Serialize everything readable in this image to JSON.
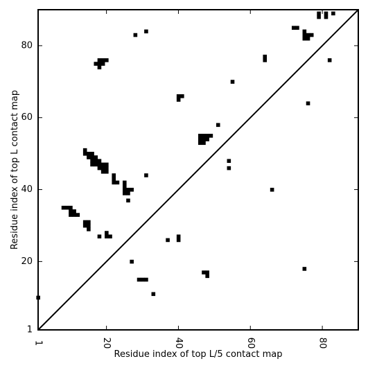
{
  "chart_data": {
    "type": "heatmap",
    "xlabel": "Residue index of top L/5 contact map",
    "ylabel": "Residue index of top L contact map",
    "xlim": [
      1,
      90
    ],
    "ylim": [
      1,
      90
    ],
    "x_ticks": [
      {
        "value": 1,
        "label": "1"
      },
      {
        "value": 20,
        "label": "20"
      },
      {
        "value": 40,
        "label": "40"
      },
      {
        "value": 60,
        "label": "60"
      },
      {
        "value": 80,
        "label": "80"
      }
    ],
    "y_ticks": [
      {
        "value": 1,
        "label": "1"
      },
      {
        "value": 20,
        "label": "20"
      },
      {
        "value": 40,
        "label": "40"
      },
      {
        "value": 60,
        "label": "60"
      },
      {
        "value": 80,
        "label": "80"
      }
    ],
    "diagonal": true,
    "cell_color": "#000000",
    "contacts": [
      [
        1,
        10
      ],
      [
        8,
        35
      ],
      [
        9,
        35
      ],
      [
        10,
        35
      ],
      [
        10,
        34
      ],
      [
        11,
        34
      ],
      [
        10,
        33
      ],
      [
        11,
        33
      ],
      [
        12,
        33
      ],
      [
        14,
        30
      ],
      [
        15,
        30
      ],
      [
        14,
        31
      ],
      [
        15,
        31
      ],
      [
        15,
        29
      ],
      [
        14,
        50
      ],
      [
        14,
        51
      ],
      [
        15,
        50
      ],
      [
        16,
        50
      ],
      [
        15,
        49
      ],
      [
        16,
        49
      ],
      [
        17,
        49
      ],
      [
        16,
        48
      ],
      [
        17,
        48
      ],
      [
        18,
        48
      ],
      [
        16,
        47
      ],
      [
        17,
        47
      ],
      [
        18,
        47
      ],
      [
        19,
        47
      ],
      [
        20,
        47
      ],
      [
        18,
        46
      ],
      [
        19,
        46
      ],
      [
        20,
        46
      ],
      [
        19,
        45
      ],
      [
        20,
        45
      ],
      [
        22,
        44
      ],
      [
        22,
        43
      ],
      [
        22,
        42
      ],
      [
        23,
        42
      ],
      [
        25,
        42
      ],
      [
        25,
        41
      ],
      [
        25,
        40
      ],
      [
        26,
        40
      ],
      [
        27,
        40
      ],
      [
        25,
        39
      ],
      [
        26,
        39
      ],
      [
        26,
        37
      ],
      [
        18,
        27
      ],
      [
        20,
        28
      ],
      [
        20,
        27
      ],
      [
        21,
        27
      ],
      [
        18,
        76
      ],
      [
        19,
        76
      ],
      [
        20,
        76
      ],
      [
        17,
        75
      ],
      [
        18,
        75
      ],
      [
        19,
        75
      ],
      [
        18,
        74
      ],
      [
        27,
        20
      ],
      [
        29,
        15
      ],
      [
        30,
        15
      ],
      [
        31,
        15
      ],
      [
        33,
        11
      ],
      [
        28,
        83
      ],
      [
        31,
        84
      ],
      [
        31,
        44
      ],
      [
        37,
        26
      ],
      [
        40,
        27
      ],
      [
        40,
        26
      ],
      [
        40,
        66
      ],
      [
        41,
        66
      ],
      [
        40,
        65
      ],
      [
        46,
        55
      ],
      [
        47,
        55
      ],
      [
        48,
        55
      ],
      [
        49,
        55
      ],
      [
        46,
        54
      ],
      [
        47,
        54
      ],
      [
        48,
        54
      ],
      [
        46,
        53
      ],
      [
        47,
        53
      ],
      [
        47,
        17
      ],
      [
        48,
        17
      ],
      [
        48,
        16
      ],
      [
        51,
        58
      ],
      [
        54,
        48
      ],
      [
        54,
        46
      ],
      [
        55,
        70
      ],
      [
        64,
        77
      ],
      [
        64,
        76
      ],
      [
        66,
        40
      ],
      [
        72,
        85
      ],
      [
        73,
        85
      ],
      [
        75,
        84
      ],
      [
        75,
        83
      ],
      [
        76,
        83
      ],
      [
        77,
        83
      ],
      [
        75,
        82
      ],
      [
        76,
        82
      ],
      [
        75,
        18
      ],
      [
        76,
        64
      ],
      [
        79,
        89
      ],
      [
        79,
        88
      ],
      [
        81,
        89
      ],
      [
        81,
        88
      ],
      [
        83,
        89
      ],
      [
        82,
        76
      ]
    ]
  }
}
